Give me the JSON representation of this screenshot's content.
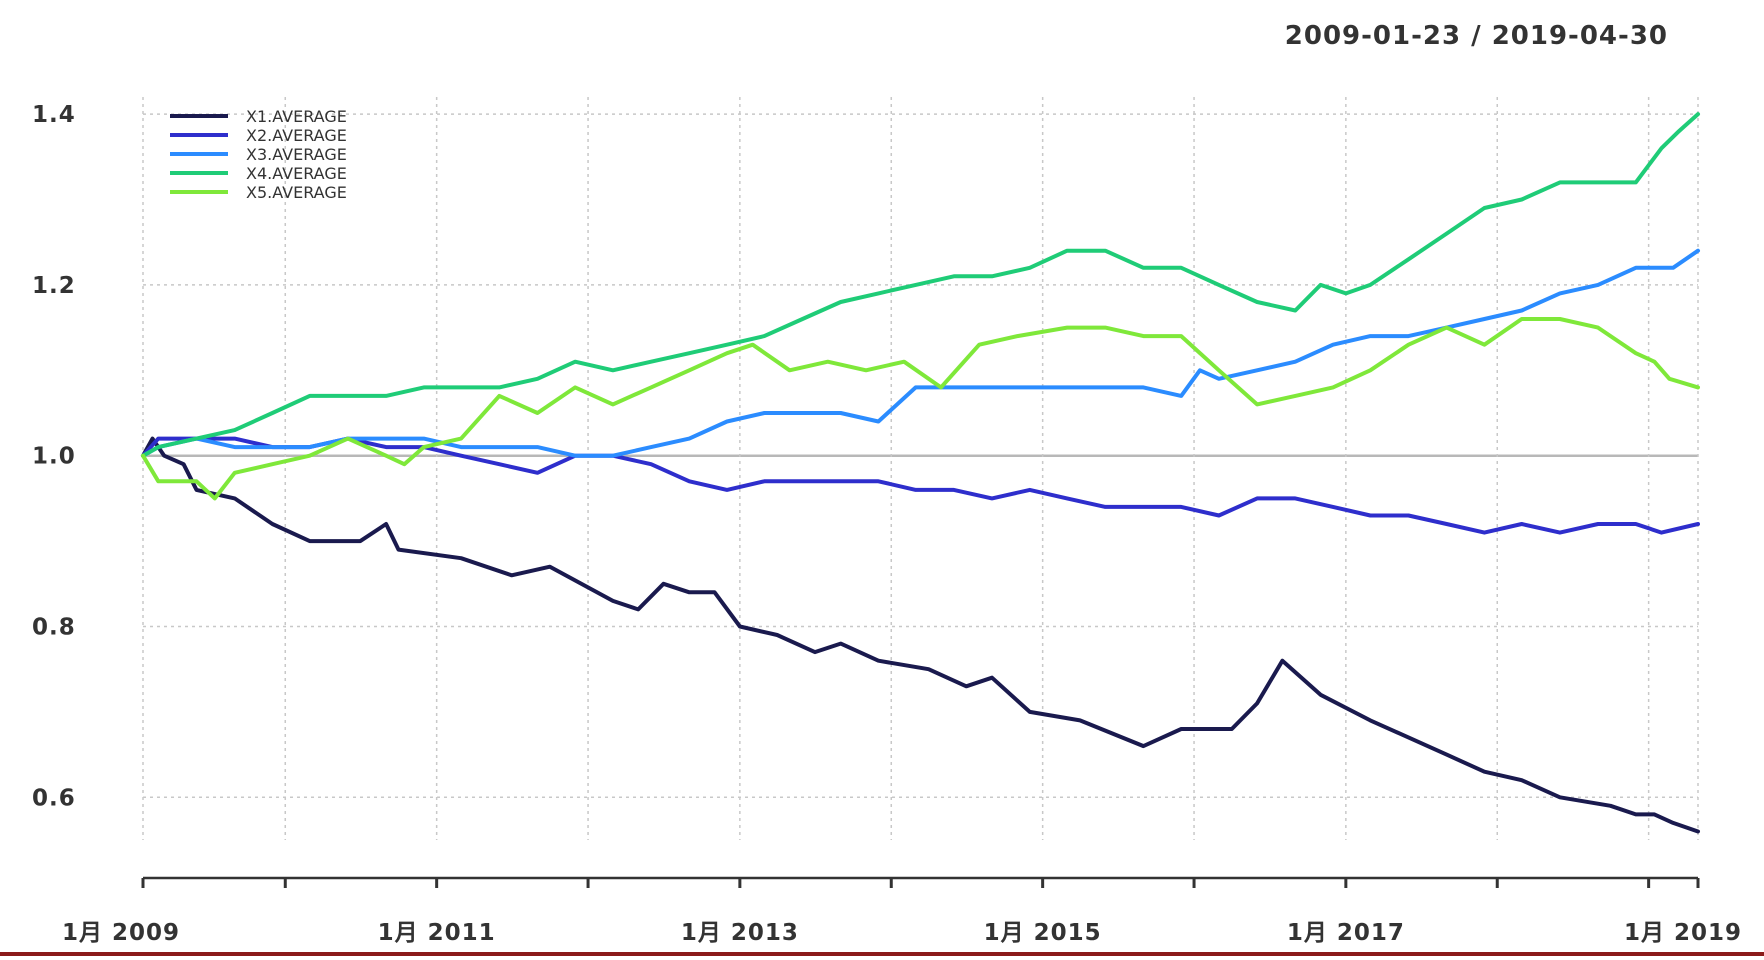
{
  "chart_data": {
    "type": "line",
    "date_range": "2009-01-23 / 2019-04-30",
    "x_range": [
      "2009-01-23",
      "2019-04-30"
    ],
    "ylim": [
      0.55,
      1.42
    ],
    "yticks": [
      0.6,
      0.8,
      1.0,
      1.2,
      1.4
    ],
    "ytick_labels": [
      "0.6",
      "0.8",
      "1.0",
      "1.2",
      "1.4"
    ],
    "xticks": [
      {
        "x": "2009-01-23",
        "label": "1月 2009"
      },
      {
        "x": "2011-01-01",
        "label": "1月 2011"
      },
      {
        "x": "2013-01-01",
        "label": "1月 2013"
      },
      {
        "x": "2015-01-01",
        "label": "1月 2015"
      },
      {
        "x": "2017-01-01",
        "label": "1月 2017"
      },
      {
        "x": "2019-01-01",
        "label": "1月 2019"
      }
    ],
    "minor_xticks": [
      "2010-01-01",
      "2012-01-01",
      "2014-01-01",
      "2016-01-01",
      "2018-01-01",
      "2019-04-30"
    ],
    "reference_line": 1.0,
    "grid": true,
    "legend_position": "top-left",
    "series": [
      {
        "name": "X1.AVERAGE",
        "color": "#1a1a4e",
        "points": [
          [
            "2009-01-23",
            1.0
          ],
          [
            "2009-02-15",
            1.02
          ],
          [
            "2009-03-15",
            1.0
          ],
          [
            "2009-05-01",
            0.99
          ],
          [
            "2009-06-01",
            0.96
          ],
          [
            "2009-09-01",
            0.95
          ],
          [
            "2009-12-01",
            0.92
          ],
          [
            "2010-03-01",
            0.9
          ],
          [
            "2010-07-01",
            0.9
          ],
          [
            "2010-09-01",
            0.92
          ],
          [
            "2010-10-01",
            0.89
          ],
          [
            "2011-03-01",
            0.88
          ],
          [
            "2011-07-01",
            0.86
          ],
          [
            "2011-10-01",
            0.87
          ],
          [
            "2012-03-01",
            0.83
          ],
          [
            "2012-05-01",
            0.82
          ],
          [
            "2012-07-01",
            0.85
          ],
          [
            "2012-09-01",
            0.84
          ],
          [
            "2012-11-01",
            0.84
          ],
          [
            "2013-01-01",
            0.8
          ],
          [
            "2013-04-01",
            0.79
          ],
          [
            "2013-07-01",
            0.77
          ],
          [
            "2013-09-01",
            0.78
          ],
          [
            "2013-12-01",
            0.76
          ],
          [
            "2014-04-01",
            0.75
          ],
          [
            "2014-07-01",
            0.73
          ],
          [
            "2014-09-01",
            0.74
          ],
          [
            "2014-12-01",
            0.7
          ],
          [
            "2015-04-01",
            0.69
          ],
          [
            "2015-09-01",
            0.66
          ],
          [
            "2015-12-01",
            0.68
          ],
          [
            "2016-04-01",
            0.68
          ],
          [
            "2016-06-01",
            0.71
          ],
          [
            "2016-08-01",
            0.76
          ],
          [
            "2016-11-01",
            0.72
          ],
          [
            "2017-03-01",
            0.69
          ],
          [
            "2017-09-01",
            0.65
          ],
          [
            "2017-12-01",
            0.63
          ],
          [
            "2018-03-01",
            0.62
          ],
          [
            "2018-06-01",
            0.6
          ],
          [
            "2018-10-01",
            0.59
          ],
          [
            "2018-12-01",
            0.58
          ],
          [
            "2019-01-15",
            0.58
          ],
          [
            "2019-03-01",
            0.57
          ],
          [
            "2019-04-30",
            0.56
          ]
        ]
      },
      {
        "name": "X2.AVERAGE",
        "color": "#2e2ecc",
        "points": [
          [
            "2009-01-23",
            1.0
          ],
          [
            "2009-03-01",
            1.02
          ],
          [
            "2009-06-01",
            1.02
          ],
          [
            "2009-09-01",
            1.02
          ],
          [
            "2009-12-01",
            1.01
          ],
          [
            "2010-03-01",
            1.01
          ],
          [
            "2010-06-01",
            1.02
          ],
          [
            "2010-09-01",
            1.01
          ],
          [
            "2010-12-01",
            1.01
          ],
          [
            "2011-03-01",
            1.0
          ],
          [
            "2011-06-01",
            0.99
          ],
          [
            "2011-09-01",
            0.98
          ],
          [
            "2011-12-01",
            1.0
          ],
          [
            "2012-03-01",
            1.0
          ],
          [
            "2012-06-01",
            0.99
          ],
          [
            "2012-09-01",
            0.97
          ],
          [
            "2012-12-01",
            0.96
          ],
          [
            "2013-03-01",
            0.97
          ],
          [
            "2013-06-01",
            0.97
          ],
          [
            "2013-09-01",
            0.97
          ],
          [
            "2013-12-01",
            0.97
          ],
          [
            "2014-03-01",
            0.96
          ],
          [
            "2014-06-01",
            0.96
          ],
          [
            "2014-09-01",
            0.95
          ],
          [
            "2014-12-01",
            0.96
          ],
          [
            "2015-03-01",
            0.95
          ],
          [
            "2015-06-01",
            0.94
          ],
          [
            "2015-09-01",
            0.94
          ],
          [
            "2015-12-01",
            0.94
          ],
          [
            "2016-03-01",
            0.93
          ],
          [
            "2016-06-01",
            0.95
          ],
          [
            "2016-09-01",
            0.95
          ],
          [
            "2016-12-01",
            0.94
          ],
          [
            "2017-03-01",
            0.93
          ],
          [
            "2017-06-01",
            0.93
          ],
          [
            "2017-09-01",
            0.92
          ],
          [
            "2017-12-01",
            0.91
          ],
          [
            "2018-03-01",
            0.92
          ],
          [
            "2018-06-01",
            0.91
          ],
          [
            "2018-09-01",
            0.92
          ],
          [
            "2018-12-01",
            0.92
          ],
          [
            "2019-02-01",
            0.91
          ],
          [
            "2019-04-30",
            0.92
          ]
        ]
      },
      {
        "name": "X3.AVERAGE",
        "color": "#2b8cff",
        "points": [
          [
            "2009-01-23",
            1.0
          ],
          [
            "2009-03-01",
            1.01
          ],
          [
            "2009-06-01",
            1.02
          ],
          [
            "2009-09-01",
            1.01
          ],
          [
            "2009-12-01",
            1.01
          ],
          [
            "2010-03-01",
            1.01
          ],
          [
            "2010-06-01",
            1.02
          ],
          [
            "2010-09-01",
            1.02
          ],
          [
            "2010-12-01",
            1.02
          ],
          [
            "2011-03-01",
            1.01
          ],
          [
            "2011-06-01",
            1.01
          ],
          [
            "2011-09-01",
            1.01
          ],
          [
            "2011-12-01",
            1.0
          ],
          [
            "2012-03-01",
            1.0
          ],
          [
            "2012-06-01",
            1.01
          ],
          [
            "2012-09-01",
            1.02
          ],
          [
            "2012-12-01",
            1.04
          ],
          [
            "2013-03-01",
            1.05
          ],
          [
            "2013-06-01",
            1.05
          ],
          [
            "2013-09-01",
            1.05
          ],
          [
            "2013-12-01",
            1.04
          ],
          [
            "2014-03-01",
            1.08
          ],
          [
            "2014-06-01",
            1.08
          ],
          [
            "2014-09-01",
            1.08
          ],
          [
            "2014-12-01",
            1.08
          ],
          [
            "2015-03-01",
            1.08
          ],
          [
            "2015-06-01",
            1.08
          ],
          [
            "2015-09-01",
            1.08
          ],
          [
            "2015-12-01",
            1.07
          ],
          [
            "2016-01-15",
            1.1
          ],
          [
            "2016-03-01",
            1.09
          ],
          [
            "2016-06-01",
            1.1
          ],
          [
            "2016-09-01",
            1.11
          ],
          [
            "2016-12-01",
            1.13
          ],
          [
            "2017-03-01",
            1.14
          ],
          [
            "2017-06-01",
            1.14
          ],
          [
            "2017-09-01",
            1.15
          ],
          [
            "2017-12-01",
            1.16
          ],
          [
            "2018-03-01",
            1.17
          ],
          [
            "2018-06-01",
            1.19
          ],
          [
            "2018-09-01",
            1.2
          ],
          [
            "2018-12-01",
            1.22
          ],
          [
            "2019-03-01",
            1.22
          ],
          [
            "2019-04-30",
            1.24
          ]
        ]
      },
      {
        "name": "X4.AVERAGE",
        "color": "#1fcc77",
        "points": [
          [
            "2009-01-23",
            1.0
          ],
          [
            "2009-03-01",
            1.01
          ],
          [
            "2009-06-01",
            1.02
          ],
          [
            "2009-09-01",
            1.03
          ],
          [
            "2009-12-01",
            1.05
          ],
          [
            "2010-03-01",
            1.07
          ],
          [
            "2010-06-01",
            1.07
          ],
          [
            "2010-09-01",
            1.07
          ],
          [
            "2010-12-01",
            1.08
          ],
          [
            "2011-03-01",
            1.08
          ],
          [
            "2011-06-01",
            1.08
          ],
          [
            "2011-09-01",
            1.09
          ],
          [
            "2011-12-01",
            1.11
          ],
          [
            "2012-03-01",
            1.1
          ],
          [
            "2012-06-01",
            1.11
          ],
          [
            "2012-09-01",
            1.12
          ],
          [
            "2012-12-01",
            1.13
          ],
          [
            "2013-03-01",
            1.14
          ],
          [
            "2013-06-01",
            1.16
          ],
          [
            "2013-09-01",
            1.18
          ],
          [
            "2013-12-01",
            1.19
          ],
          [
            "2014-03-01",
            1.2
          ],
          [
            "2014-06-01",
            1.21
          ],
          [
            "2014-09-01",
            1.21
          ],
          [
            "2014-12-01",
            1.22
          ],
          [
            "2015-03-01",
            1.24
          ],
          [
            "2015-06-01",
            1.24
          ],
          [
            "2015-09-01",
            1.22
          ],
          [
            "2015-12-01",
            1.22
          ],
          [
            "2016-03-01",
            1.2
          ],
          [
            "2016-06-01",
            1.18
          ],
          [
            "2016-09-01",
            1.17
          ],
          [
            "2016-11-01",
            1.2
          ],
          [
            "2017-01-01",
            1.19
          ],
          [
            "2017-03-01",
            1.2
          ],
          [
            "2017-06-01",
            1.23
          ],
          [
            "2017-09-01",
            1.26
          ],
          [
            "2017-12-01",
            1.29
          ],
          [
            "2018-03-01",
            1.3
          ],
          [
            "2018-06-01",
            1.32
          ],
          [
            "2018-09-01",
            1.32
          ],
          [
            "2018-12-01",
            1.32
          ],
          [
            "2019-02-01",
            1.36
          ],
          [
            "2019-03-15",
            1.38
          ],
          [
            "2019-04-30",
            1.4
          ]
        ]
      },
      {
        "name": "X5.AVERAGE",
        "color": "#7fe83a",
        "points": [
          [
            "2009-01-23",
            1.0
          ],
          [
            "2009-03-01",
            0.97
          ],
          [
            "2009-06-01",
            0.97
          ],
          [
            "2009-07-15",
            0.95
          ],
          [
            "2009-09-01",
            0.98
          ],
          [
            "2009-12-01",
            0.99
          ],
          [
            "2010-03-01",
            1.0
          ],
          [
            "2010-06-01",
            1.02
          ],
          [
            "2010-09-01",
            1.0
          ],
          [
            "2010-10-15",
            0.99
          ],
          [
            "2010-12-01",
            1.01
          ],
          [
            "2011-03-01",
            1.02
          ],
          [
            "2011-06-01",
            1.07
          ],
          [
            "2011-09-01",
            1.05
          ],
          [
            "2011-12-01",
            1.08
          ],
          [
            "2012-03-01",
            1.06
          ],
          [
            "2012-06-01",
            1.08
          ],
          [
            "2012-09-01",
            1.1
          ],
          [
            "2012-12-01",
            1.12
          ],
          [
            "2013-02-01",
            1.13
          ],
          [
            "2013-05-01",
            1.1
          ],
          [
            "2013-08-01",
            1.11
          ],
          [
            "2013-11-01",
            1.1
          ],
          [
            "2014-02-01",
            1.11
          ],
          [
            "2014-05-01",
            1.08
          ],
          [
            "2014-08-01",
            1.13
          ],
          [
            "2014-11-01",
            1.14
          ],
          [
            "2015-03-01",
            1.15
          ],
          [
            "2015-06-01",
            1.15
          ],
          [
            "2015-09-01",
            1.14
          ],
          [
            "2015-12-01",
            1.14
          ],
          [
            "2016-03-01",
            1.1
          ],
          [
            "2016-06-01",
            1.06
          ],
          [
            "2016-09-01",
            1.07
          ],
          [
            "2016-12-01",
            1.08
          ],
          [
            "2017-03-01",
            1.1
          ],
          [
            "2017-06-01",
            1.13
          ],
          [
            "2017-09-01",
            1.15
          ],
          [
            "2017-12-01",
            1.13
          ],
          [
            "2018-03-01",
            1.16
          ],
          [
            "2018-06-01",
            1.16
          ],
          [
            "2018-09-01",
            1.15
          ],
          [
            "2018-12-01",
            1.12
          ],
          [
            "2019-01-15",
            1.11
          ],
          [
            "2019-02-20",
            1.09
          ],
          [
            "2019-04-30",
            1.08
          ]
        ]
      }
    ]
  }
}
